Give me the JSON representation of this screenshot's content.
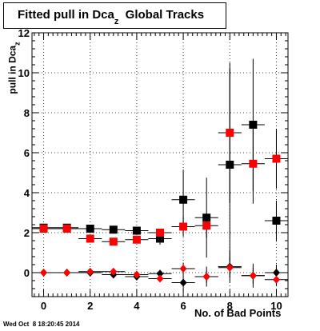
{
  "title": {
    "main": "Fitted pull in Dca",
    "sub": "z",
    "tail": "  Global Tracks"
  },
  "ylabel": {
    "main": "pull in Dca",
    "sub": "z"
  },
  "xlabel": "No. of Bad Points",
  "datestamp": "Wed Oct  8 18:20:45 2014",
  "chart_data": {
    "type": "scatter",
    "xlim": [
      -0.5,
      10.5
    ],
    "ylim": [
      -1.2,
      12
    ],
    "xticks": [
      0,
      2,
      4,
      6,
      8,
      10
    ],
    "yticks": [
      0,
      2,
      4,
      6,
      8,
      10,
      12
    ],
    "grid": true,
    "series": [
      {
        "marker": "square",
        "color": "#000000",
        "points": [
          {
            "x": 0,
            "y": 2.25,
            "err": 0.08
          },
          {
            "x": 1,
            "y": 2.25,
            "err": 0.08
          },
          {
            "x": 2,
            "y": 2.2,
            "err": 0.1
          },
          {
            "x": 3,
            "y": 2.15,
            "err": 0.12
          },
          {
            "x": 4,
            "y": 2.1,
            "err": 0.18
          },
          {
            "x": 5,
            "y": 1.7,
            "err": 0.3
          },
          {
            "x": 6,
            "y": 3.65,
            "err": 1.5
          },
          {
            "x": 7,
            "y": 2.75,
            "err": 2.0
          },
          {
            "x": 8,
            "y": 5.4,
            "err": 4.8
          },
          {
            "x": 9,
            "y": 7.4,
            "err": 3.3
          },
          {
            "x": 10,
            "y": 2.6,
            "err": 1.0
          }
        ]
      },
      {
        "marker": "square",
        "color": "#ff0000",
        "points": [
          {
            "x": 0,
            "y": 2.2,
            "err": 0.06
          },
          {
            "x": 1,
            "y": 2.2,
            "err": 0.06
          },
          {
            "x": 2,
            "y": 1.7,
            "err": 0.08
          },
          {
            "x": 3,
            "y": 1.55,
            "err": 0.1
          },
          {
            "x": 4,
            "y": 1.65,
            "err": 0.12
          },
          {
            "x": 5,
            "y": 2.0,
            "err": 0.2
          },
          {
            "x": 6,
            "y": 2.3,
            "err": 0.5
          },
          {
            "x": 7,
            "y": 2.35,
            "err": 0.6
          },
          {
            "x": 8,
            "y": 7.0,
            "err": 3.5
          },
          {
            "x": 9,
            "y": 5.45,
            "err": 2.0
          },
          {
            "x": 10,
            "y": 5.7,
            "err": 1.5
          }
        ]
      },
      {
        "marker": "diamond",
        "color": "#000000",
        "points": [
          {
            "x": 0,
            "y": 0.0,
            "err": 0.03
          },
          {
            "x": 1,
            "y": 0.0,
            "err": 0.03
          },
          {
            "x": 2,
            "y": 0.0,
            "err": 0.04
          },
          {
            "x": 3,
            "y": -0.1,
            "err": 0.05
          },
          {
            "x": 4,
            "y": -0.2,
            "err": 0.08
          },
          {
            "x": 5,
            "y": -0.05,
            "err": 0.1
          },
          {
            "x": 6,
            "y": -0.5,
            "err": 0.4
          },
          {
            "x": 7,
            "y": -0.2,
            "err": 0.5
          },
          {
            "x": 8,
            "y": 0.3,
            "err": 0.8
          },
          {
            "x": 9,
            "y": -0.15,
            "err": 0.6
          },
          {
            "x": 10,
            "y": 0.0,
            "err": 0.4
          }
        ]
      },
      {
        "marker": "diamond",
        "color": "#ff0000",
        "points": [
          {
            "x": 0,
            "y": 0.0,
            "err": 0.03
          },
          {
            "x": 1,
            "y": 0.0,
            "err": 0.03
          },
          {
            "x": 2,
            "y": 0.05,
            "err": 0.04
          },
          {
            "x": 3,
            "y": 0.05,
            "err": 0.05
          },
          {
            "x": 4,
            "y": -0.1,
            "err": 0.06
          },
          {
            "x": 5,
            "y": -0.3,
            "err": 0.1
          },
          {
            "x": 6,
            "y": 0.2,
            "err": 0.3
          },
          {
            "x": 7,
            "y": -0.2,
            "err": 0.3
          },
          {
            "x": 8,
            "y": 0.25,
            "err": 0.5
          },
          {
            "x": 9,
            "y": -0.15,
            "err": 0.4
          },
          {
            "x": 10,
            "y": -0.35,
            "err": 0.3
          }
        ]
      }
    ]
  }
}
